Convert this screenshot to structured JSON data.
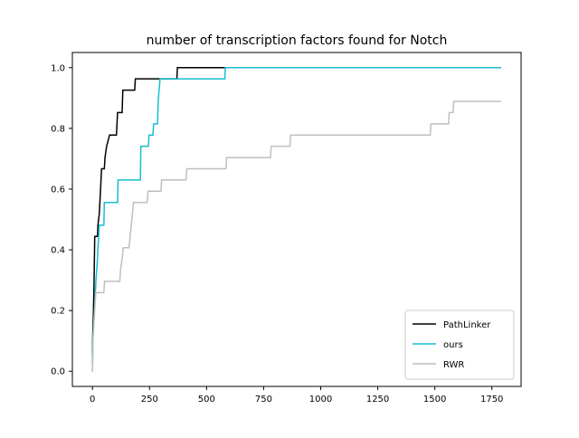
{
  "chart_data": {
    "type": "line",
    "title": "number of transcription factors found for Notch",
    "xlabel": "",
    "ylabel": "",
    "xlim": [
      -88,
      1878
    ],
    "ylim": [
      -0.05,
      1.05
    ],
    "x_ticks": [
      0,
      250,
      500,
      750,
      1000,
      1250,
      1500,
      1750
    ],
    "x_tick_labels": [
      "0",
      "250",
      "500",
      "750",
      "1000",
      "1250",
      "1500",
      "1750"
    ],
    "y_ticks": [
      0.0,
      0.2,
      0.4,
      0.6,
      0.8,
      1.0
    ],
    "y_tick_labels": [
      "0.0",
      "0.2",
      "0.4",
      "0.6",
      "0.8",
      "1.0"
    ],
    "grid": false,
    "legend_position": "lower-right",
    "series": [
      {
        "name": "PathLinker",
        "color": "#000000",
        "points": [
          [
            0,
            0.0
          ],
          [
            1,
            0.111
          ],
          [
            4,
            0.185
          ],
          [
            7,
            0.296
          ],
          [
            10,
            0.444
          ],
          [
            22,
            0.444
          ],
          [
            24,
            0.481
          ],
          [
            30,
            0.519
          ],
          [
            35,
            0.593
          ],
          [
            40,
            0.667
          ],
          [
            52,
            0.667
          ],
          [
            55,
            0.704
          ],
          [
            62,
            0.741
          ],
          [
            75,
            0.778
          ],
          [
            105,
            0.778
          ],
          [
            110,
            0.852
          ],
          [
            130,
            0.852
          ],
          [
            133,
            0.926
          ],
          [
            185,
            0.926
          ],
          [
            188,
            0.963
          ],
          [
            370,
            0.963
          ],
          [
            372,
            1.0
          ],
          [
            1790,
            1.0
          ]
        ]
      },
      {
        "name": "ours",
        "color": "#17becf",
        "points": [
          [
            0,
            0.0
          ],
          [
            2,
            0.111
          ],
          [
            8,
            0.185
          ],
          [
            15,
            0.296
          ],
          [
            22,
            0.37
          ],
          [
            27,
            0.444
          ],
          [
            30,
            0.481
          ],
          [
            50,
            0.481
          ],
          [
            52,
            0.556
          ],
          [
            110,
            0.556
          ],
          [
            112,
            0.63
          ],
          [
            210,
            0.63
          ],
          [
            212,
            0.741
          ],
          [
            245,
            0.741
          ],
          [
            248,
            0.778
          ],
          [
            265,
            0.778
          ],
          [
            268,
            0.815
          ],
          [
            285,
            0.815
          ],
          [
            288,
            0.889
          ],
          [
            292,
            0.926
          ],
          [
            296,
            0.963
          ],
          [
            580,
            0.963
          ],
          [
            582,
            1.0
          ],
          [
            1790,
            1.0
          ]
        ]
      },
      {
        "name": "RWR",
        "color": "#bfbfbf",
        "points": [
          [
            0,
            0.0
          ],
          [
            3,
            0.111
          ],
          [
            8,
            0.185
          ],
          [
            15,
            0.259
          ],
          [
            50,
            0.259
          ],
          [
            53,
            0.296
          ],
          [
            120,
            0.296
          ],
          [
            123,
            0.333
          ],
          [
            130,
            0.37
          ],
          [
            135,
            0.407
          ],
          [
            160,
            0.407
          ],
          [
            165,
            0.444
          ],
          [
            170,
            0.481
          ],
          [
            175,
            0.519
          ],
          [
            180,
            0.556
          ],
          [
            240,
            0.556
          ],
          [
            243,
            0.593
          ],
          [
            300,
            0.593
          ],
          [
            303,
            0.63
          ],
          [
            410,
            0.63
          ],
          [
            413,
            0.667
          ],
          [
            585,
            0.667
          ],
          [
            588,
            0.704
          ],
          [
            780,
            0.704
          ],
          [
            783,
            0.741
          ],
          [
            865,
            0.741
          ],
          [
            868,
            0.778
          ],
          [
            1480,
            0.778
          ],
          [
            1483,
            0.815
          ],
          [
            1560,
            0.815
          ],
          [
            1563,
            0.852
          ],
          [
            1580,
            0.852
          ],
          [
            1583,
            0.889
          ],
          [
            1790,
            0.889
          ]
        ]
      }
    ]
  }
}
